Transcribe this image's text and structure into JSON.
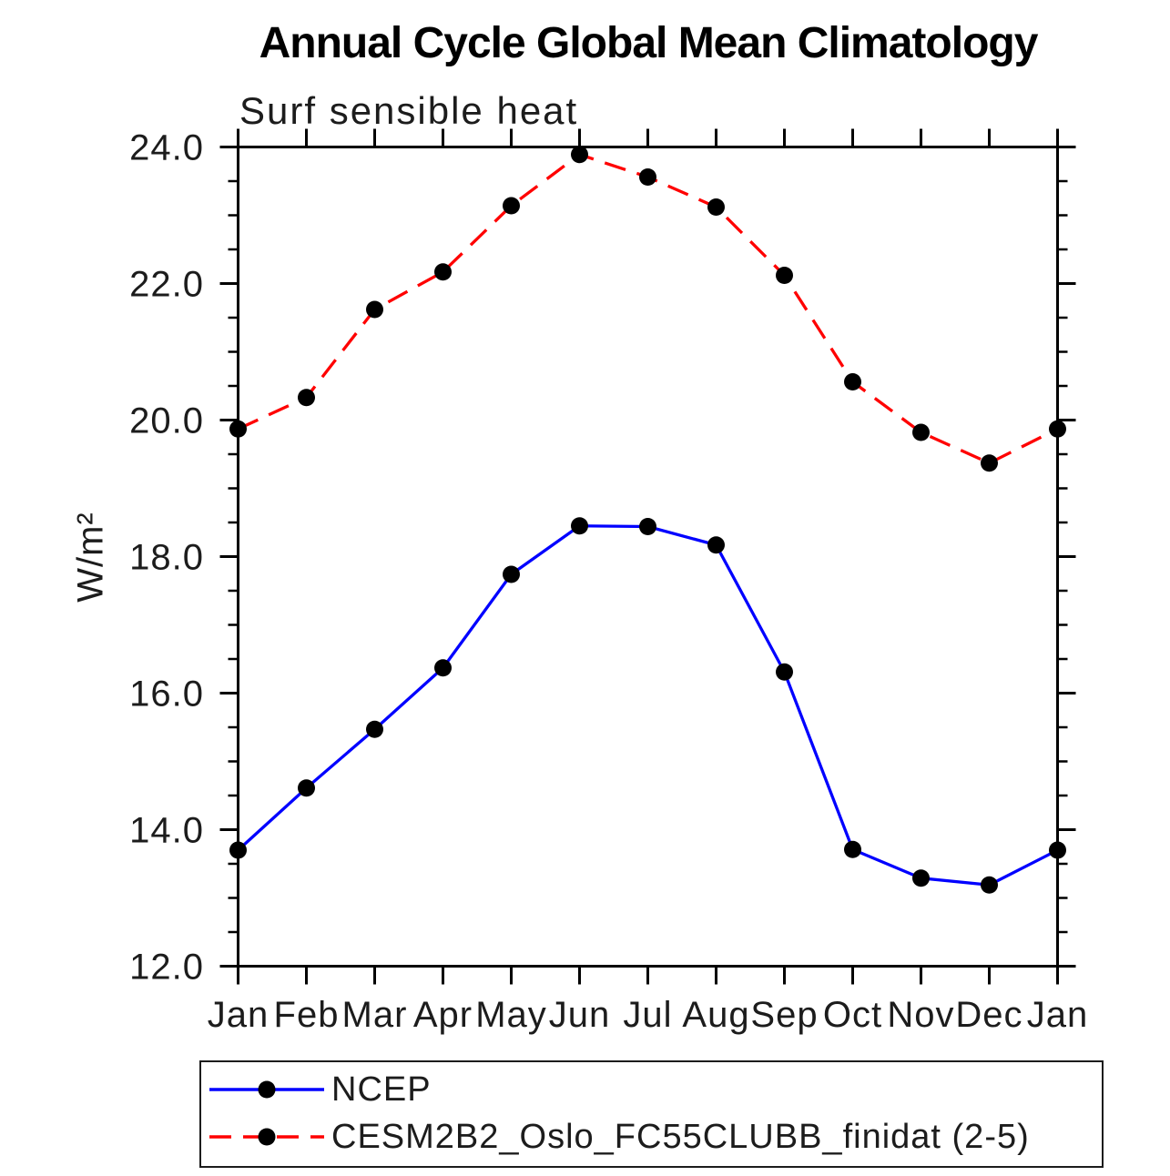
{
  "chart_data": {
    "type": "line",
    "title": "Annual Cycle Global Mean Climatology",
    "subtitle": "Surf sensible heat",
    "ylabel": "W/m²",
    "xlabel": "",
    "categories": [
      "Jan",
      "Feb",
      "Mar",
      "Apr",
      "May",
      "Jun",
      "Jul",
      "Aug",
      "Sep",
      "Oct",
      "Nov",
      "Dec",
      "Jan"
    ],
    "ylim": [
      12.0,
      24.0
    ],
    "yticks": [
      12.0,
      14.0,
      16.0,
      18.0,
      20.0,
      22.0,
      24.0
    ],
    "ytick_labels": [
      "12.0",
      "14.0",
      "16.0",
      "18.0",
      "20.0",
      "22.0",
      "24.0"
    ],
    "y_minor_step": 0.5,
    "grid": false,
    "legend_position": "bottom",
    "axis_color": "#000000",
    "text_color": "#1c1c1c",
    "marker_shape": "filled-circle",
    "series": [
      {
        "name": "NCEP",
        "color": "#0000ff",
        "line_style": "solid",
        "marker_color": "#000000",
        "values": [
          13.7,
          14.61,
          15.47,
          16.37,
          17.74,
          18.45,
          18.44,
          18.17,
          16.31,
          13.71,
          13.29,
          13.19,
          13.7
        ]
      },
      {
        "name": "CESM2B2_Oslo_FC55CLUBB_finidat (2-5)",
        "color": "#ff0000",
        "line_style": "dashed",
        "marker_color": "#000000",
        "values": [
          19.87,
          20.33,
          21.62,
          22.17,
          23.14,
          23.89,
          23.56,
          23.12,
          22.12,
          20.56,
          19.82,
          19.37,
          19.87
        ]
      }
    ]
  }
}
